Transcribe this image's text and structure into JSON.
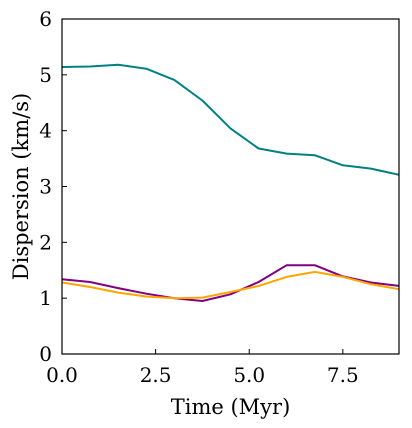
{
  "chart_data": {
    "type": "line",
    "title": "",
    "xlabel": "Time (Myr)",
    "ylabel": "Dispersion (km/s)",
    "xlim": [
      0,
      9
    ],
    "ylim": [
      0,
      6
    ],
    "grid": false,
    "legend": "none",
    "x_ticks": [
      "0.0",
      "2.5",
      "5.0",
      "7.5"
    ],
    "x_tick_values": [
      0,
      2.5,
      5,
      7.5
    ],
    "y_ticks": [
      "0",
      "1",
      "2",
      "3",
      "4",
      "5",
      "6"
    ],
    "y_tick_values": [
      0,
      1,
      2,
      3,
      4,
      5,
      6
    ],
    "series": [
      {
        "color": "#008080",
        "x": [
          0,
          0.75,
          1.5,
          2.25,
          3.0,
          3.75,
          4.5,
          5.25,
          6.0,
          6.75,
          7.5,
          8.25,
          9.0
        ],
        "y": [
          5.14,
          5.15,
          5.18,
          5.11,
          4.91,
          4.54,
          4.04,
          3.68,
          3.59,
          3.56,
          3.38,
          3.32,
          3.21
        ]
      },
      {
        "color": "#800080",
        "x": [
          0,
          0.75,
          1.5,
          2.25,
          3.0,
          3.75,
          4.5,
          5.25,
          6.0,
          6.75,
          7.5,
          8.25,
          9.0
        ],
        "y": [
          1.34,
          1.29,
          1.18,
          1.08,
          1.0,
          0.95,
          1.07,
          1.29,
          1.59,
          1.59,
          1.39,
          1.28,
          1.22
        ]
      },
      {
        "color": "#FFA500",
        "x": [
          0,
          0.75,
          1.5,
          2.25,
          3.0,
          3.75,
          4.5,
          5.25,
          6.0,
          6.75,
          7.5,
          8.25,
          9.0
        ],
        "y": [
          1.28,
          1.2,
          1.1,
          1.03,
          1.0,
          1.01,
          1.11,
          1.22,
          1.38,
          1.47,
          1.38,
          1.25,
          1.16
        ]
      }
    ]
  }
}
